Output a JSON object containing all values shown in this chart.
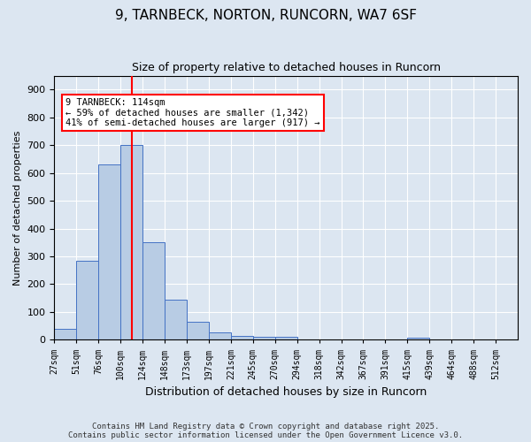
{
  "title_line1": "9, TARNBECK, NORTON, RUNCORN, WA7 6SF",
  "title_line2": "Size of property relative to detached houses in Runcorn",
  "xlabel": "Distribution of detached houses by size in Runcorn",
  "ylabel": "Number of detached properties",
  "footer_line1": "Contains HM Land Registry data © Crown copyright and database right 2025.",
  "footer_line2": "Contains public sector information licensed under the Open Government Licence v3.0.",
  "annotation_title": "9 TARNBECK: 114sqm",
  "annotation_line2": "← 59% of detached houses are smaller (1,342)",
  "annotation_line3": "41% of semi-detached houses are larger (917) →",
  "bar_values": [
    40,
    283,
    632,
    700,
    350,
    143,
    65,
    28,
    15,
    11,
    11,
    0,
    0,
    0,
    0,
    0,
    7,
    0,
    0,
    0,
    0
  ],
  "bin_labels": [
    "27sqm",
    "51sqm",
    "76sqm",
    "100sqm",
    "124sqm",
    "148sqm",
    "173sqm",
    "197sqm",
    "221sqm",
    "245sqm",
    "270sqm",
    "294sqm",
    "318sqm",
    "342sqm",
    "367sqm",
    "391sqm",
    "415sqm",
    "439sqm",
    "464sqm",
    "488sqm",
    "512sqm"
  ],
  "bar_color": "#b8cce4",
  "bar_edge_color": "#4472c4",
  "background_color": "#dce6f1",
  "plot_bg_color": "#dce6f1",
  "vline_x": 3.5,
  "vline_color": "red",
  "ylim": [
    0,
    950
  ],
  "yticks": [
    0,
    100,
    200,
    300,
    400,
    500,
    600,
    700,
    800,
    900
  ],
  "grid_color": "#ffffff",
  "n_bins": 21
}
